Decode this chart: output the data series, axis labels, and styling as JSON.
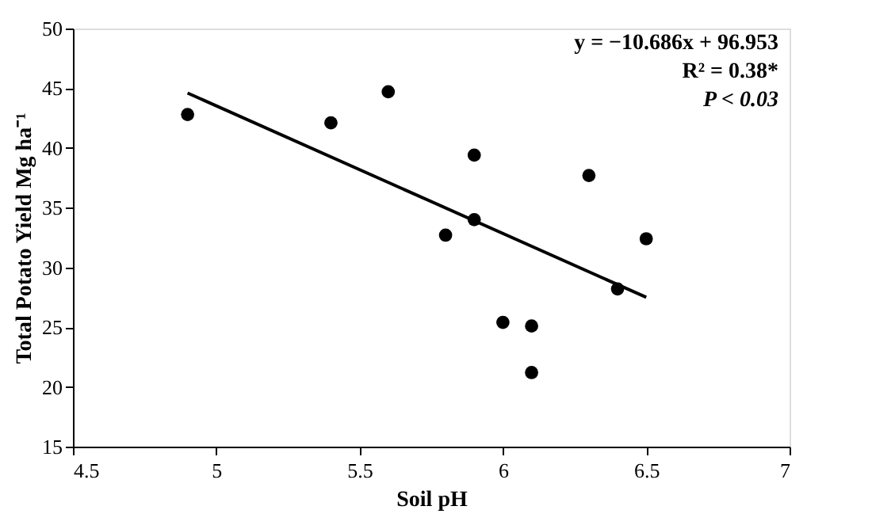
{
  "chart_data": {
    "type": "scatter",
    "xlabel": "Soil pH",
    "ylabel": "Total Potato Yield Mg ha⁻¹",
    "series": [
      {
        "color": "#000000",
        "marker": "circle",
        "x": [
          4.9,
          5.4,
          5.6,
          5.8,
          5.9,
          5.9,
          6.0,
          6.1,
          6.1,
          6.3,
          6.4,
          6.5
        ],
        "values": [
          42.8,
          42.1,
          44.7,
          32.7,
          39.4,
          34.0,
          25.4,
          25.1,
          21.2,
          37.7,
          28.2,
          32.4
        ]
      },
      {
        "type": "line",
        "color": "#000000",
        "x": [
          4.9,
          6.5
        ],
        "values": [
          44.6,
          27.5
        ]
      }
    ],
    "xlim": [
      4.5,
      7
    ],
    "xticks": [
      4.5,
      5,
      5.5,
      6,
      6.5,
      7
    ],
    "ylim": [
      15,
      50
    ],
    "yticks": [
      15,
      20,
      25,
      30,
      35,
      40,
      45,
      50
    ],
    "grid": false,
    "legend": false,
    "annotations": [
      "y = −10.686x + 96.953",
      "R² = 0.38*",
      "P < 0.03"
    ]
  }
}
